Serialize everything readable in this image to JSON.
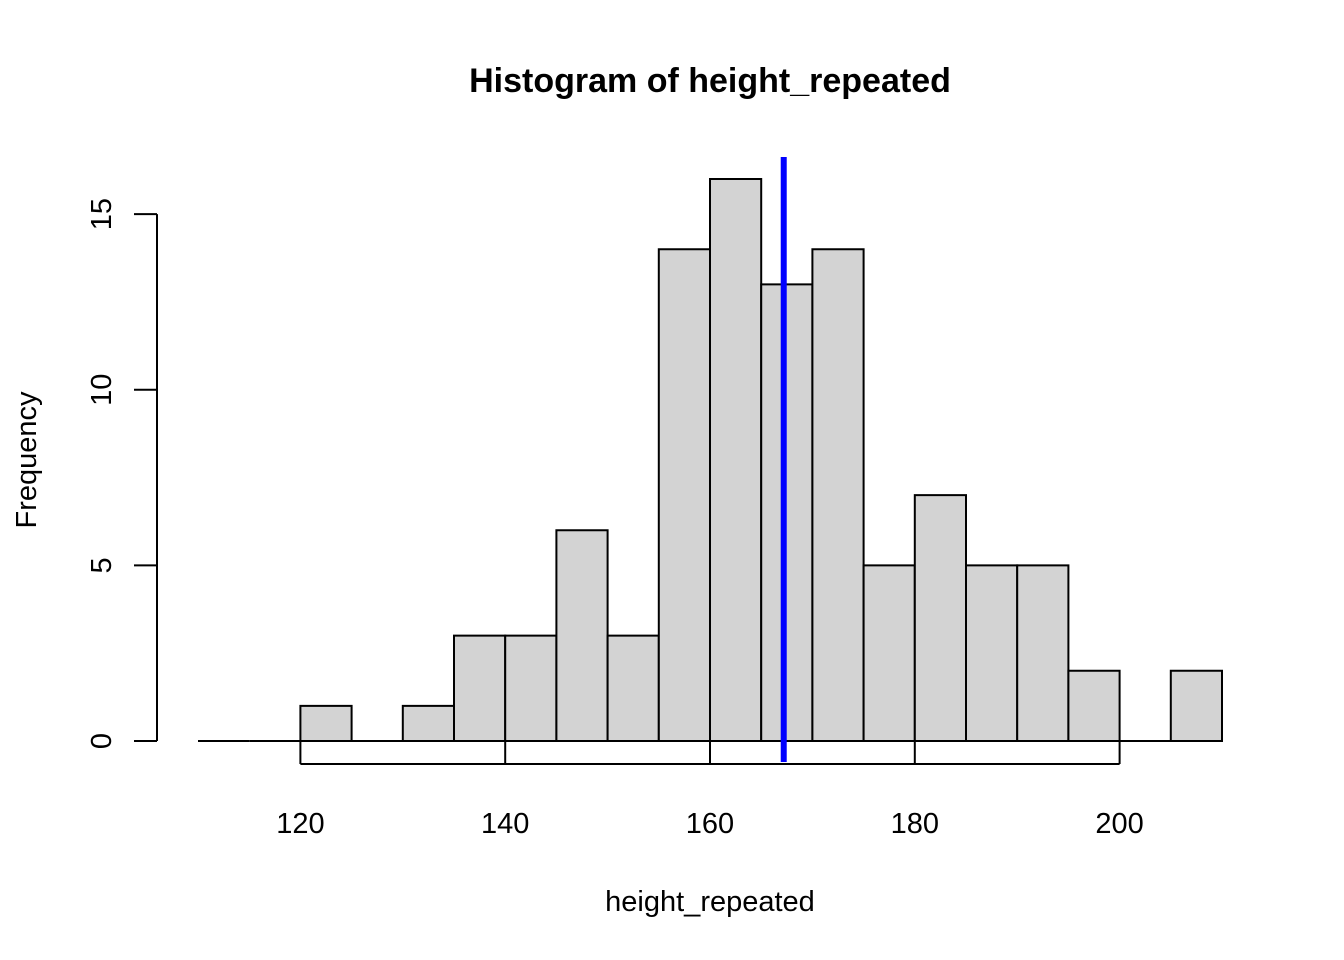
{
  "chart_data": {
    "type": "bar",
    "title": "Histogram of height_repeated",
    "xlabel": "height_repeated",
    "ylabel": "Frequency",
    "xlim": [
      110,
      210
    ],
    "ylim": [
      0,
      16
    ],
    "x_ticks": [
      120,
      140,
      160,
      180,
      200
    ],
    "y_ticks": [
      0,
      5,
      10,
      15
    ],
    "bins": [
      {
        "start": 110,
        "end": 115,
        "count": 0
      },
      {
        "start": 115,
        "end": 120,
        "count": 0
      },
      {
        "start": 120,
        "end": 125,
        "count": 1
      },
      {
        "start": 125,
        "end": 130,
        "count": 0
      },
      {
        "start": 130,
        "end": 135,
        "count": 1
      },
      {
        "start": 135,
        "end": 140,
        "count": 3
      },
      {
        "start": 140,
        "end": 145,
        "count": 3
      },
      {
        "start": 145,
        "end": 150,
        "count": 6
      },
      {
        "start": 150,
        "end": 155,
        "count": 3
      },
      {
        "start": 155,
        "end": 160,
        "count": 14
      },
      {
        "start": 160,
        "end": 165,
        "count": 16
      },
      {
        "start": 165,
        "end": 170,
        "count": 13
      },
      {
        "start": 170,
        "end": 175,
        "count": 14
      },
      {
        "start": 175,
        "end": 180,
        "count": 5
      },
      {
        "start": 180,
        "end": 185,
        "count": 7
      },
      {
        "start": 185,
        "end": 190,
        "count": 5
      },
      {
        "start": 190,
        "end": 195,
        "count": 5
      },
      {
        "start": 195,
        "end": 200,
        "count": 2
      },
      {
        "start": 200,
        "end": 205,
        "count": 0
      },
      {
        "start": 205,
        "end": 210,
        "count": 2
      }
    ],
    "vertical_line": {
      "x": 167.2,
      "color": "#0000ff"
    },
    "bar_fill": "#d3d3d3",
    "bar_stroke": "#000000",
    "grid": false,
    "legend": "none"
  }
}
